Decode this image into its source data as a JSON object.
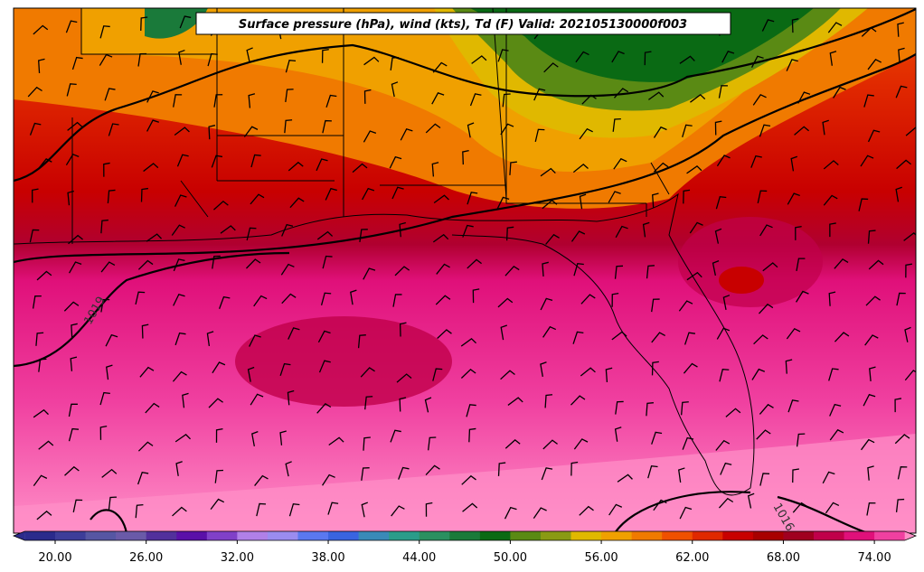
{
  "title": "Surface pressure (hPa), wind (kts), Td (F) Valid: 202105130000f003",
  "contour_labels": [
    "1019",
    "1016"
  ],
  "colorbar": {
    "ticks": [
      "20.00",
      "26.00",
      "32.00",
      "38.00",
      "44.00",
      "50.00",
      "56.00",
      "62.00",
      "68.00",
      "74.00"
    ],
    "colors": [
      "#2b2b8c",
      "#3d3d99",
      "#5656a3",
      "#6a5aa8",
      "#52309c",
      "#5a10a8",
      "#8040c8",
      "#b080e8",
      "#9a8cf0",
      "#5a78f0",
      "#3a64e0",
      "#3a8ab8",
      "#2a9c8a",
      "#2a9060",
      "#1a7a3a",
      "#0a6a14",
      "#5a8a14",
      "#8a9a14",
      "#e0b800",
      "#f0a000",
      "#f07a00",
      "#f05000",
      "#e02800",
      "#c80000",
      "#a80000",
      "#a00020",
      "#c0004a",
      "#e0107a",
      "#f040a0"
    ]
  }
}
